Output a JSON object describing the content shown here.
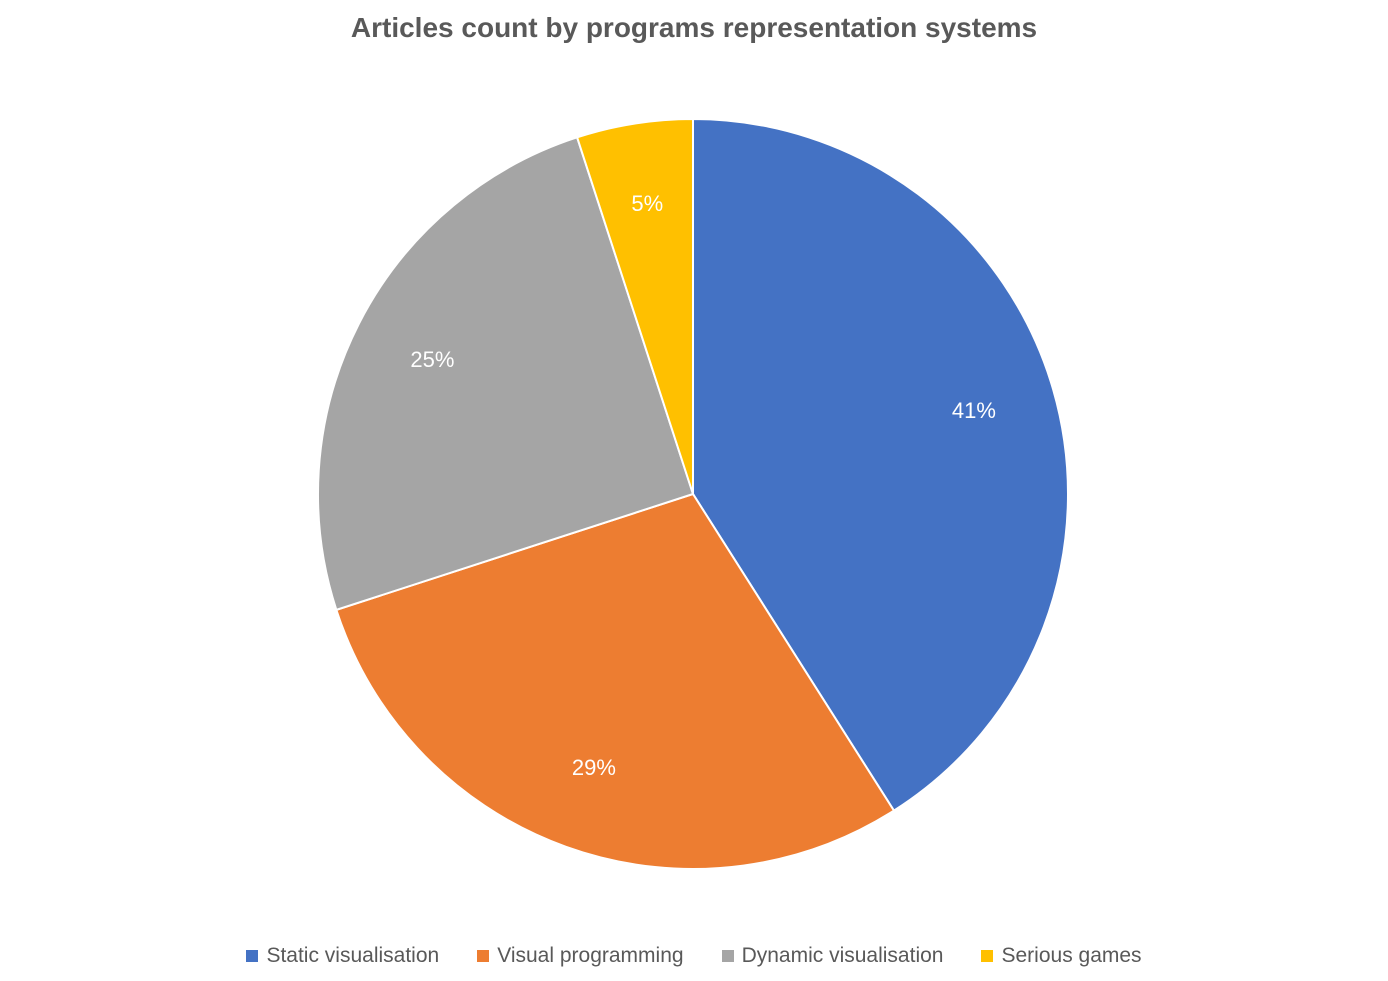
{
  "chart_data": {
    "type": "pie",
    "title": "Articles count by programs representation systems",
    "categories": [
      "Static visualisation",
      "Visual programming",
      "Dynamic visualisation",
      "Serious games"
    ],
    "values": [
      41,
      29,
      25,
      5
    ],
    "labels": [
      "41%",
      "29%",
      "25%",
      "5%"
    ],
    "colors": [
      "#4472C4",
      "#ED7D31",
      "#A5A5A5",
      "#FFC000"
    ],
    "start_angle": "12 o'clock",
    "direction": "clockwise",
    "legend_position": "bottom"
  }
}
